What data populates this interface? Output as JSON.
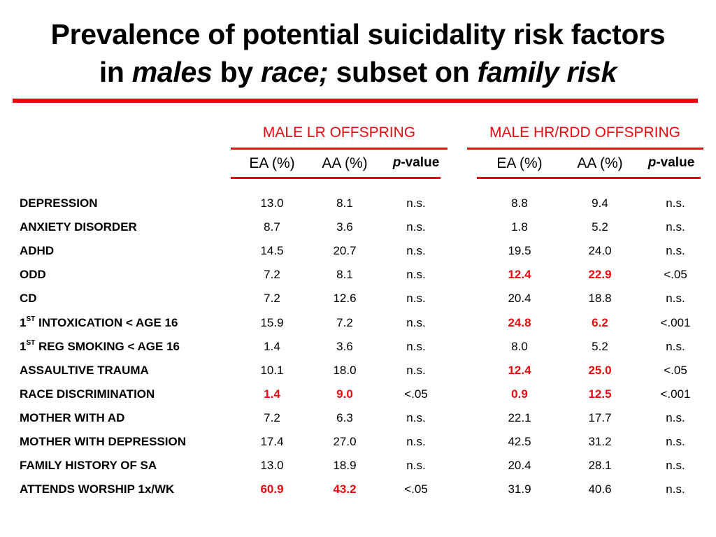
{
  "title": {
    "line1": "Prevalence of potential suicidality risk factors",
    "line2_a": "in ",
    "line2_b": "males",
    "line2_c": " by ",
    "line2_d": "race;",
    "line2_e": " subset on ",
    "line2_f": "family risk"
  },
  "groups": {
    "lr": "MALE LR OFFSPRING",
    "hr": "MALE HR/RDD OFFSPRING"
  },
  "columns": {
    "ea": "EA (%)",
    "aa": "AA (%)",
    "p_italic": "p",
    "p_rest": "-value"
  },
  "accent_color": "#e8090f",
  "rows": [
    {
      "pre": "DEPRESSION",
      "sup": "",
      "post": "",
      "v": [
        "13.0",
        "8.1",
        "n.s.",
        "8.8",
        "9.4",
        "n.s."
      ],
      "hl": [
        false,
        false,
        false,
        false,
        false,
        false
      ]
    },
    {
      "pre": "ANXIETY DISORDER",
      "sup": "",
      "post": "",
      "v": [
        "8.7",
        "3.6",
        "n.s.",
        "1.8",
        "5.2",
        "n.s."
      ],
      "hl": [
        false,
        false,
        false,
        false,
        false,
        false
      ]
    },
    {
      "pre": "ADHD",
      "sup": "",
      "post": "",
      "v": [
        "14.5",
        "20.7",
        "n.s.",
        "19.5",
        "24.0",
        "n.s."
      ],
      "hl": [
        false,
        false,
        false,
        false,
        false,
        false
      ]
    },
    {
      "pre": "ODD",
      "sup": "",
      "post": "",
      "v": [
        "7.2",
        "8.1",
        "n.s.",
        "12.4",
        "22.9",
        "<.05"
      ],
      "hl": [
        false,
        false,
        false,
        true,
        true,
        false
      ]
    },
    {
      "pre": "CD",
      "sup": "",
      "post": "",
      "v": [
        "7.2",
        "12.6",
        "n.s.",
        "20.4",
        "18.8",
        "n.s."
      ],
      "hl": [
        false,
        false,
        false,
        false,
        false,
        false
      ]
    },
    {
      "pre": "1",
      "sup": "ST",
      "post": " INTOXICATION < AGE 16",
      "v": [
        "15.9",
        "7.2",
        "n.s.",
        "24.8",
        "6.2",
        "<.001"
      ],
      "hl": [
        false,
        false,
        false,
        true,
        true,
        false
      ]
    },
    {
      "pre": "1",
      "sup": "ST",
      "post": " REG SMOKING < AGE 16",
      "v": [
        "1.4",
        "3.6",
        "n.s.",
        "8.0",
        "5.2",
        "n.s."
      ],
      "hl": [
        false,
        false,
        false,
        false,
        false,
        false
      ]
    },
    {
      "pre": "ASSAULTIVE TRAUMA",
      "sup": "",
      "post": "",
      "v": [
        "10.1",
        "18.0",
        "n.s.",
        "12.4",
        "25.0",
        "<.05"
      ],
      "hl": [
        false,
        false,
        false,
        true,
        true,
        false
      ]
    },
    {
      "pre": "RACE DISCRIMINATION",
      "sup": "",
      "post": "",
      "v": [
        "1.4",
        "9.0",
        "<.05",
        "0.9",
        "12.5",
        "<.001"
      ],
      "hl": [
        true,
        true,
        false,
        true,
        true,
        false
      ]
    },
    {
      "pre": "MOTHER WITH AD",
      "sup": "",
      "post": "",
      "v": [
        "7.2",
        "6.3",
        "n.s.",
        "22.1",
        "17.7",
        "n.s."
      ],
      "hl": [
        false,
        false,
        false,
        false,
        false,
        false
      ]
    },
    {
      "pre": "MOTHER WITH DEPRESSION",
      "sup": "",
      "post": "",
      "v": [
        "17.4",
        "27.0",
        "n.s.",
        "42.5",
        "31.2",
        "n.s."
      ],
      "hl": [
        false,
        false,
        false,
        false,
        false,
        false
      ]
    },
    {
      "pre": "FAMILY HISTORY OF SA",
      "sup": "",
      "post": "",
      "v": [
        "13.0",
        "18.9",
        "n.s.",
        "20.4",
        "28.1",
        "n.s."
      ],
      "hl": [
        false,
        false,
        false,
        false,
        false,
        false
      ]
    },
    {
      "pre": "ATTENDS WORSHIP 1x/WK",
      "sup": "",
      "post": "",
      "v": [
        "60.9",
        "43.2",
        "<.05",
        "31.9",
        "40.6",
        "n.s."
      ],
      "hl": [
        true,
        true,
        false,
        false,
        false,
        false
      ]
    }
  ]
}
